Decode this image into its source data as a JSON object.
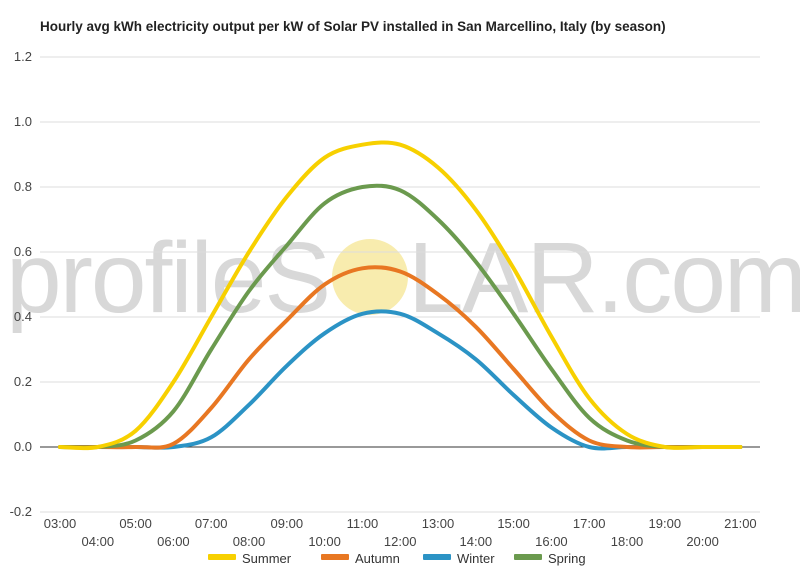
{
  "title": "Hourly avg kWh electricity output per kW of Solar PV installed in San Marcellino, Italy (by season)",
  "watermark": {
    "left": "profileS",
    "right": "LAR.com"
  },
  "colors": {
    "Summer": "#f7d000",
    "Autumn": "#e87722",
    "Winter": "#2b93c5",
    "Spring": "#6b9a4e",
    "grid": "#dddddd",
    "zero_line": "#333333",
    "sun": "#f7e9a0"
  },
  "chart_data": {
    "type": "line",
    "title": "Hourly avg kWh electricity output per kW of Solar PV installed in San Marcellino, Italy (by season)",
    "xlabel": "",
    "ylabel": "",
    "ylim": [
      -0.2,
      1.2
    ],
    "yticks": [
      "-0.2",
      "0.0",
      "0.2",
      "0.4",
      "0.6",
      "0.8",
      "1.0",
      "1.2"
    ],
    "grid": true,
    "legend": "bottom",
    "x": [
      "03:00",
      "04:00",
      "05:00",
      "06:00",
      "07:00",
      "08:00",
      "09:00",
      "10:00",
      "11:00",
      "12:00",
      "13:00",
      "14:00",
      "15:00",
      "16:00",
      "17:00",
      "18:00",
      "19:00",
      "20:00",
      "21:00"
    ],
    "series": [
      {
        "name": "Summer",
        "values": [
          0.0,
          0.0,
          0.05,
          0.2,
          0.4,
          0.6,
          0.77,
          0.89,
          0.93,
          0.93,
          0.86,
          0.73,
          0.55,
          0.34,
          0.15,
          0.04,
          0.0,
          0.0,
          0.0
        ]
      },
      {
        "name": "Autumn",
        "values": [
          0.0,
          0.0,
          0.0,
          0.01,
          0.12,
          0.27,
          0.39,
          0.5,
          0.55,
          0.54,
          0.47,
          0.37,
          0.24,
          0.11,
          0.02,
          0.0,
          0.0,
          0.0,
          0.0
        ]
      },
      {
        "name": "Winter",
        "values": [
          0.0,
          0.0,
          0.0,
          0.0,
          0.03,
          0.13,
          0.25,
          0.35,
          0.41,
          0.41,
          0.35,
          0.27,
          0.16,
          0.06,
          0.0,
          0.0,
          0.0,
          0.0,
          0.0
        ]
      },
      {
        "name": "Spring",
        "values": [
          0.0,
          0.0,
          0.02,
          0.11,
          0.3,
          0.48,
          0.62,
          0.75,
          0.8,
          0.79,
          0.7,
          0.57,
          0.41,
          0.24,
          0.09,
          0.02,
          0.0,
          0.0,
          0.0
        ]
      }
    ]
  }
}
